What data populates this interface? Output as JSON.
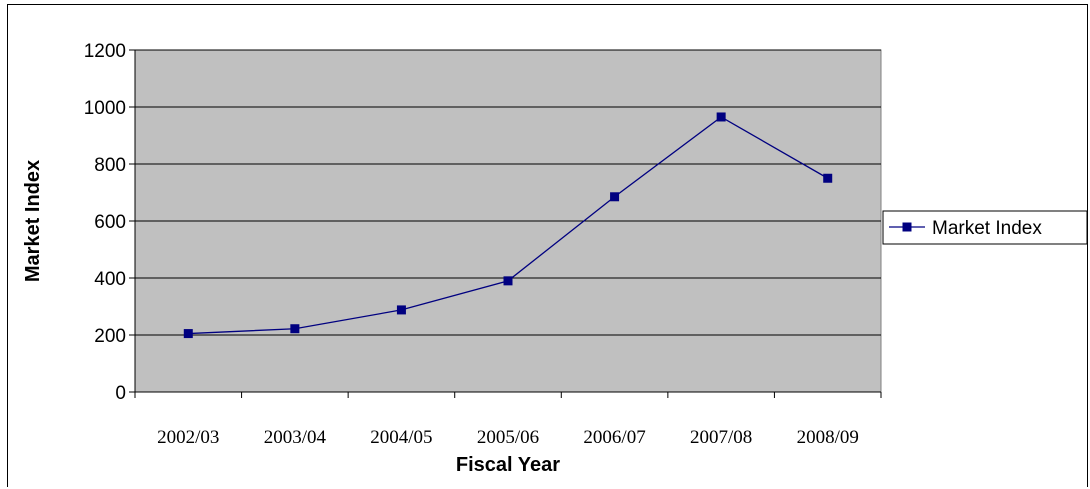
{
  "chart_data": {
    "type": "line",
    "categories": [
      "2002/03",
      "2003/04",
      "2004/05",
      "2005/06",
      "2006/07",
      "2007/08",
      "2008/09"
    ],
    "series": [
      {
        "name": "Market Index",
        "values": [
          205,
          222,
          288,
          390,
          685,
          965,
          750
        ],
        "color": "#000080"
      }
    ],
    "xlabel": "Fiscal Year",
    "ylabel": "Market Index",
    "ylim": [
      0,
      1200
    ],
    "yticks": [
      0,
      200,
      400,
      600,
      800,
      1000,
      1200
    ],
    "grid": true,
    "plot_background": "#c0c0c0",
    "legend_placement": "right"
  }
}
